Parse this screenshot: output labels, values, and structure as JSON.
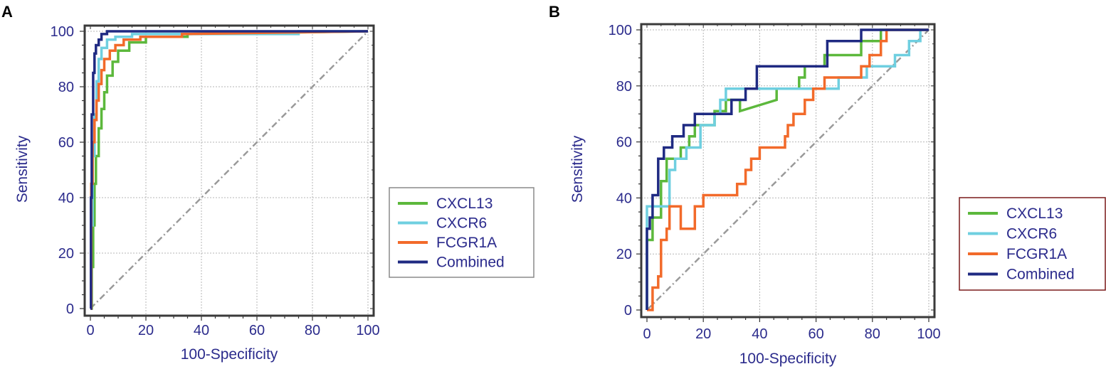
{
  "chart_data": [
    {
      "type": "line",
      "panel_label": "A",
      "title": "",
      "xlabel": "100-Specificity",
      "ylabel": "Sensitivity",
      "xlim": [
        0,
        100
      ],
      "ylim": [
        0,
        100
      ],
      "x_ticks": [
        "0",
        "20",
        "40",
        "60",
        "80",
        "100"
      ],
      "y_ticks": [
        "0",
        "20",
        "40",
        "60",
        "80",
        "100"
      ],
      "grid": true,
      "legend_position": "right",
      "legend_border_color": "#8a8a8a",
      "reference_line": {
        "name": "Chance",
        "x": [
          0,
          100
        ],
        "y": [
          0,
          100
        ],
        "color": "#9a9a9a"
      },
      "series": [
        {
          "name": "CXCL13",
          "color": "#5cb83c",
          "x": [
            0,
            0.5,
            0.5,
            1,
            1,
            1.5,
            1.5,
            2,
            2,
            3,
            3,
            4,
            4,
            5,
            5,
            6,
            6,
            8,
            8,
            10,
            10,
            14,
            14,
            20,
            20,
            35,
            35,
            100
          ],
          "y": [
            0,
            0,
            15,
            15,
            30,
            30,
            45,
            45,
            55,
            55,
            65,
            65,
            72,
            72,
            78,
            78,
            84,
            84,
            89,
            89,
            93,
            93,
            96,
            96,
            98,
            98,
            99,
            100
          ]
        },
        {
          "name": "CXCR6",
          "color": "#6fcfe0",
          "x": [
            0,
            0.3,
            0.3,
            0.8,
            0.8,
            1.5,
            1.5,
            2.2,
            2.2,
            3,
            3,
            4,
            4,
            6,
            6,
            9,
            9,
            15,
            15,
            75,
            75,
            100
          ],
          "y": [
            0,
            0,
            30,
            30,
            55,
            55,
            70,
            70,
            82,
            82,
            90,
            90,
            94,
            94,
            97,
            97,
            98,
            98,
            99,
            99,
            100,
            100
          ]
        },
        {
          "name": "FCGR1A",
          "color": "#f26a2a",
          "x": [
            0,
            0.3,
            0.3,
            0.8,
            0.8,
            1.5,
            1.5,
            2.2,
            2.2,
            3,
            3,
            4,
            4,
            5,
            5,
            7,
            7,
            9,
            9,
            12,
            12,
            18,
            18,
            33,
            33,
            100
          ],
          "y": [
            0,
            0,
            45,
            45,
            60,
            60,
            68,
            68,
            75,
            75,
            81,
            81,
            86,
            86,
            90,
            90,
            93,
            93,
            95,
            95,
            97,
            97,
            98,
            98,
            99,
            100
          ]
        },
        {
          "name": "Combined",
          "color": "#1f2a82",
          "x": [
            0,
            0.2,
            0.2,
            0.5,
            0.5,
            1,
            1,
            1.5,
            1.5,
            2,
            2,
            3,
            3,
            4,
            4,
            6,
            6,
            10,
            10,
            100
          ],
          "y": [
            0,
            0,
            40,
            40,
            70,
            70,
            85,
            85,
            92,
            92,
            95,
            95,
            97,
            97,
            99,
            99,
            100,
            100,
            100,
            100
          ]
        }
      ]
    },
    {
      "type": "line",
      "panel_label": "B",
      "title": "",
      "xlabel": "100-Specificity",
      "ylabel": "Sensitivity",
      "xlim": [
        0,
        100
      ],
      "ylim": [
        0,
        100
      ],
      "x_ticks": [
        "0",
        "20",
        "40",
        "60",
        "80",
        "100"
      ],
      "y_ticks": [
        "0",
        "20",
        "40",
        "60",
        "80",
        "100"
      ],
      "grid": true,
      "legend_position": "right",
      "legend_border_color": "#7a1a1a",
      "reference_line": {
        "name": "Chance",
        "x": [
          0,
          100
        ],
        "y": [
          0,
          100
        ],
        "color": "#9a9a9a"
      },
      "series": [
        {
          "name": "CXCL13",
          "color": "#5cb83c",
          "x": [
            0,
            0,
            2,
            2,
            5,
            5,
            7,
            7,
            12,
            12,
            15,
            15,
            17,
            17,
            24,
            24,
            28,
            28,
            33,
            33,
            46,
            46,
            54,
            54,
            56,
            56,
            63,
            63,
            76,
            76,
            83,
            83,
            100
          ],
          "y": [
            0,
            25,
            25,
            33,
            33,
            46,
            46,
            54,
            54,
            58,
            58,
            62,
            62,
            66,
            66,
            71,
            71,
            75,
            75,
            71,
            75,
            79,
            79,
            83,
            83,
            87,
            87,
            91,
            91,
            96,
            96,
            100,
            100
          ]
        },
        {
          "name": "CXCR6",
          "color": "#6fcfe0",
          "x": [
            0,
            0,
            8,
            8,
            10,
            10,
            14,
            14,
            19,
            19,
            24,
            24,
            26,
            26,
            28,
            28,
            68,
            68,
            78,
            78,
            82,
            82,
            88,
            88,
            93,
            93,
            97,
            97,
            100
          ],
          "y": [
            0,
            37,
            37,
            50,
            50,
            54,
            54,
            58,
            58,
            66,
            66,
            70,
            70,
            75,
            75,
            79,
            79,
            83,
            83,
            87,
            87,
            87,
            87,
            91,
            91,
            96,
            96,
            100,
            100
          ]
        },
        {
          "name": "FCGR1A",
          "color": "#f26a2a",
          "x": [
            0,
            0,
            2,
            2,
            4,
            4,
            5,
            5,
            7,
            7,
            8,
            8,
            12,
            12,
            17,
            17,
            20,
            20,
            32,
            32,
            35,
            35,
            37,
            37,
            40,
            40,
            49,
            49,
            50,
            50,
            52,
            52,
            56,
            56,
            59,
            59,
            63,
            63,
            76,
            76,
            79,
            79,
            83,
            83,
            85,
            85,
            88,
            88,
            91,
            91,
            94,
            94,
            97,
            97,
            100
          ],
          "y": [
            0,
            0,
            0,
            8,
            8,
            12,
            12,
            25,
            25,
            29,
            29,
            37,
            37,
            29,
            29,
            37,
            37,
            41,
            41,
            45,
            45,
            50,
            50,
            54,
            54,
            58,
            58,
            62,
            62,
            66,
            66,
            70,
            70,
            75,
            75,
            79,
            79,
            83,
            83,
            87,
            87,
            91,
            91,
            96,
            96,
            100,
            100,
            100,
            100,
            100,
            100,
            100,
            100,
            100,
            100
          ]
        },
        {
          "name": "Combined",
          "color": "#1f2a82",
          "x": [
            0,
            0,
            1,
            1,
            2,
            2,
            4,
            4,
            6,
            6,
            9,
            9,
            13,
            13,
            17,
            17,
            30,
            30,
            35,
            35,
            39,
            39,
            64,
            64,
            76,
            76,
            100
          ],
          "y": [
            0,
            29,
            29,
            33,
            33,
            41,
            41,
            54,
            54,
            58,
            58,
            62,
            62,
            66,
            66,
            70,
            70,
            75,
            75,
            79,
            79,
            87,
            87,
            96,
            96,
            100,
            100
          ]
        }
      ]
    }
  ]
}
